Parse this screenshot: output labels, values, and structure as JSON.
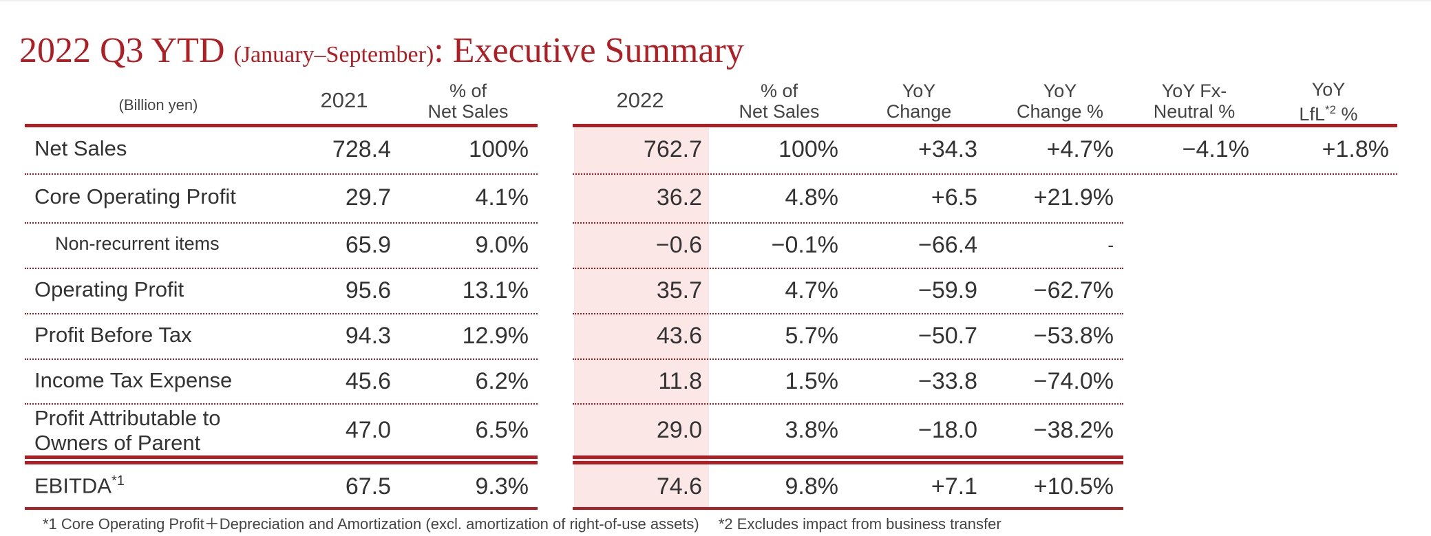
{
  "title": {
    "main": "2022 Q3 YTD",
    "period": "(January–September)",
    "suffix": ": Executive Summary"
  },
  "headers": {
    "unit": "(Billion yen)",
    "y2021": "2021",
    "pct_net_sales_1": "% of",
    "pct_net_sales_2": "Net Sales",
    "y2022": "2022",
    "yoy": "YoY",
    "change": "Change",
    "change_pct": "Change %",
    "fx_1": "YoY  Fx-",
    "fx_2": "Neutral %",
    "lfl_1": "YoY",
    "lfl_2": "LfL",
    "lfl_sup": "*2",
    "lfl_pct": " %"
  },
  "rows": [
    {
      "label": "Net Sales",
      "v2021": "728.4",
      "p2021": "100%",
      "v2022": "762.7",
      "p2022": "100%",
      "yoy": "+34.3",
      "yoy_pct": "+4.7%",
      "fx": "−4.1%",
      "lfl": "+1.8%"
    },
    {
      "label": "Core Operating Profit",
      "v2021": "29.7",
      "p2021": "4.1%",
      "v2022": "36.2",
      "p2022": "4.8%",
      "yoy": "+6.5",
      "yoy_pct": "+21.9%"
    },
    {
      "label": "Non-recurrent items",
      "v2021": "65.9",
      "p2021": "9.0%",
      "v2022": "−0.6",
      "p2022": "−0.1%",
      "yoy": "−66.4",
      "yoy_pct": "-"
    },
    {
      "label": "Operating Profit",
      "v2021": "95.6",
      "p2021": "13.1%",
      "v2022": "35.7",
      "p2022": "4.7%",
      "yoy": "−59.9",
      "yoy_pct": "−62.7%"
    },
    {
      "label": "Profit Before Tax",
      "v2021": "94.3",
      "p2021": "12.9%",
      "v2022": "43.6",
      "p2022": "5.7%",
      "yoy": "−50.7",
      "yoy_pct": "−53.8%"
    },
    {
      "label": "Income Tax Expense",
      "v2021": "45.6",
      "p2021": "6.2%",
      "v2022": "11.8",
      "p2022": "1.5%",
      "yoy": "−33.8",
      "yoy_pct": "−74.0%"
    },
    {
      "label_1": "Profit Attributable to",
      "label_2": "Owners of Parent",
      "v2021": "47.0",
      "p2021": "6.5%",
      "v2022": "29.0",
      "p2022": "3.8%",
      "yoy": "−18.0",
      "yoy_pct": "−38.2%"
    },
    {
      "label": "EBITDA",
      "label_sup": "*1",
      "v2021": "67.5",
      "p2021": "9.3%",
      "v2022": "74.6",
      "p2022": "9.8%",
      "yoy": "+7.1",
      "yoy_pct": "+10.5%"
    }
  ],
  "footnote": "*1 Core Operating Profit＋Depreciation and Amortization (excl. amortization of right-of-use assets)　 *2 Excludes impact from business transfer",
  "colors": {
    "accent": "#b01e24",
    "shade": "#fbe7e6"
  }
}
